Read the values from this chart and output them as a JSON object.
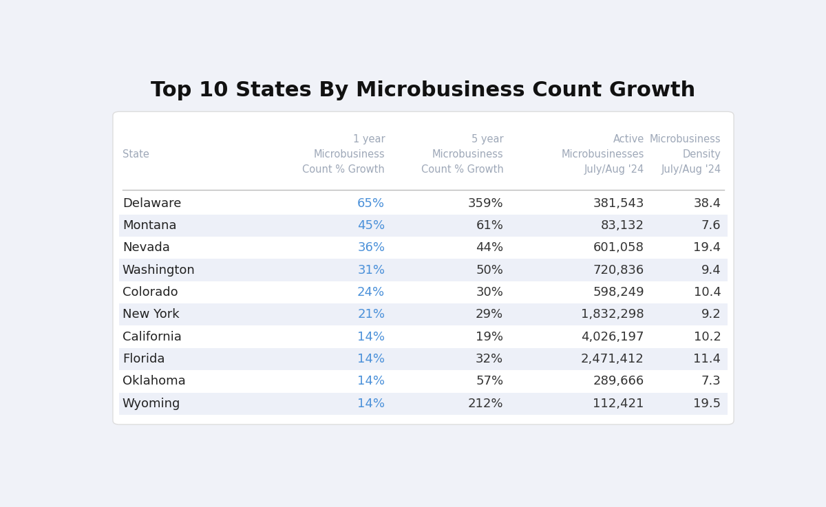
{
  "title": "Top 10 States By Microbusiness Count Growth",
  "col_headers": [
    "State",
    "1 year\nMicrobusiness\nCount % Growth",
    "5 year\nMicrobusiness\nCount % Growth",
    "Active\nMicrobusinesses\nJuly/Aug '24",
    "Microbusiness\nDensity\nJuly/Aug '24"
  ],
  "rows": [
    [
      "Delaware",
      "65%",
      "359%",
      "381,543",
      "38.4"
    ],
    [
      "Montana",
      "45%",
      "61%",
      "83,132",
      "7.6"
    ],
    [
      "Nevada",
      "36%",
      "44%",
      "601,058",
      "19.4"
    ],
    [
      "Washington",
      "31%",
      "50%",
      "720,836",
      "9.4"
    ],
    [
      "Colorado",
      "24%",
      "30%",
      "598,249",
      "10.4"
    ],
    [
      "New York",
      "21%",
      "29%",
      "1,832,298",
      "9.2"
    ],
    [
      "California",
      "14%",
      "19%",
      "4,026,197",
      "10.2"
    ],
    [
      "Florida",
      "14%",
      "32%",
      "2,471,412",
      "11.4"
    ],
    [
      "Oklahoma",
      "14%",
      "57%",
      "289,666",
      "7.3"
    ],
    [
      "Wyoming",
      "14%",
      "212%",
      "112,421",
      "19.5"
    ]
  ],
  "bg_color": "#f0f2f8",
  "table_bg": "#ffffff",
  "header_color": "#9ea8b8",
  "state_color": "#222222",
  "growth1yr_color": "#4a90d9",
  "other_col_color": "#333333",
  "title_color": "#111111",
  "row_stripe_color": "#edf0f8",
  "divider_color": "#bbbbbb",
  "title_fontsize": 22,
  "header_fontsize": 10.5,
  "row_fontsize": 13
}
